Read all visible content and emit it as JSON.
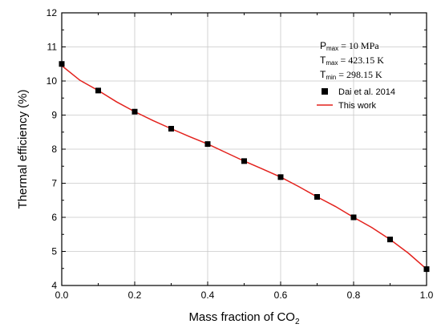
{
  "chart_data": {
    "type": "scatter",
    "title": "",
    "xlabel": "Mass fraction of CO",
    "xlabel_sub": "2",
    "ylabel": "Thermal efficiency (%)",
    "xlim": [
      0.0,
      1.0
    ],
    "ylim": [
      4,
      12
    ],
    "x_ticks": [
      "0.0",
      "0.2",
      "0.4",
      "0.6",
      "0.8",
      "1.0"
    ],
    "y_ticks": [
      "4",
      "5",
      "6",
      "7",
      "8",
      "9",
      "10",
      "11",
      "12"
    ],
    "grid": true,
    "legend_position": "top-right",
    "annotations": [
      {
        "main": "P",
        "sub": "max",
        "value": "=  10 MPa"
      },
      {
        "main": "T",
        "sub": "max",
        "value": "=  423.15 K"
      },
      {
        "main": "T",
        "sub": "min",
        "value": "=  298.15 K"
      }
    ],
    "series": [
      {
        "name": "Dai et al. 2014",
        "kind": "marker",
        "marker": "square",
        "color": "#000000",
        "x": [
          0.0,
          0.1,
          0.2,
          0.3,
          0.4,
          0.5,
          0.6,
          0.7,
          0.8,
          0.9,
          1.0
        ],
        "y": [
          10.5,
          9.72,
          9.1,
          8.6,
          8.15,
          7.65,
          7.18,
          6.6,
          6.0,
          5.35,
          4.48
        ]
      },
      {
        "name": "This work",
        "kind": "line",
        "color": "#e3211c",
        "x": [
          0.0,
          0.05,
          0.1,
          0.15,
          0.2,
          0.25,
          0.3,
          0.35,
          0.4,
          0.45,
          0.5,
          0.55,
          0.6,
          0.65,
          0.7,
          0.75,
          0.8,
          0.85,
          0.9,
          0.95,
          1.0
        ],
        "y": [
          10.45,
          10.02,
          9.72,
          9.39,
          9.1,
          8.84,
          8.6,
          8.37,
          8.15,
          7.9,
          7.65,
          7.42,
          7.18,
          6.9,
          6.6,
          6.32,
          6.0,
          5.7,
          5.35,
          4.95,
          4.48
        ]
      }
    ]
  }
}
